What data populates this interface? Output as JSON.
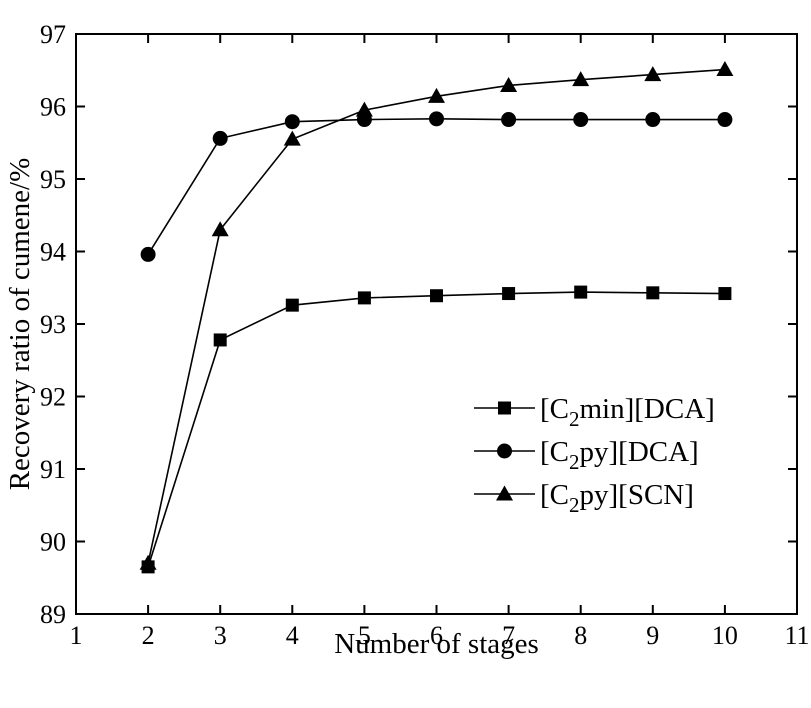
{
  "chart_data": {
    "type": "line",
    "xlabel": "Number of stages",
    "ylabel": "Recovery ratio of cumene/%",
    "xlim": [
      1,
      11
    ],
    "ylim": [
      89,
      97
    ],
    "xticks": [
      1,
      2,
      3,
      4,
      5,
      6,
      7,
      8,
      9,
      10,
      11
    ],
    "yticks": [
      89,
      90,
      91,
      92,
      93,
      94,
      95,
      96,
      97
    ],
    "grid": false,
    "legend_position": "center-right",
    "series": [
      {
        "name": "[C2min][DCA]",
        "label_main": "[C",
        "label_sub": "2",
        "label_rest": "min][DCA]",
        "marker": "square",
        "x": [
          2,
          3,
          4,
          5,
          6,
          7,
          8,
          9,
          10
        ],
        "y": [
          89.65,
          92.78,
          93.26,
          93.36,
          93.39,
          93.42,
          93.44,
          93.43,
          93.42
        ]
      },
      {
        "name": "[C2py][DCA]",
        "label_main": "[C",
        "label_sub": "2",
        "label_rest": "py][DCA]",
        "marker": "circle",
        "x": [
          2,
          3,
          4,
          5,
          6,
          7,
          8,
          9,
          10
        ],
        "y": [
          93.96,
          95.56,
          95.79,
          95.82,
          95.83,
          95.82,
          95.82,
          95.82,
          95.82
        ]
      },
      {
        "name": "[C2py][SCN]",
        "label_main": "[C",
        "label_sub": "2",
        "label_rest": "py][SCN]",
        "marker": "triangle",
        "x": [
          2,
          3,
          4,
          5,
          6,
          7,
          8,
          9,
          10
        ],
        "y": [
          89.7,
          94.3,
          95.55,
          95.95,
          96.14,
          96.29,
          96.37,
          96.44,
          96.51
        ]
      }
    ]
  }
}
